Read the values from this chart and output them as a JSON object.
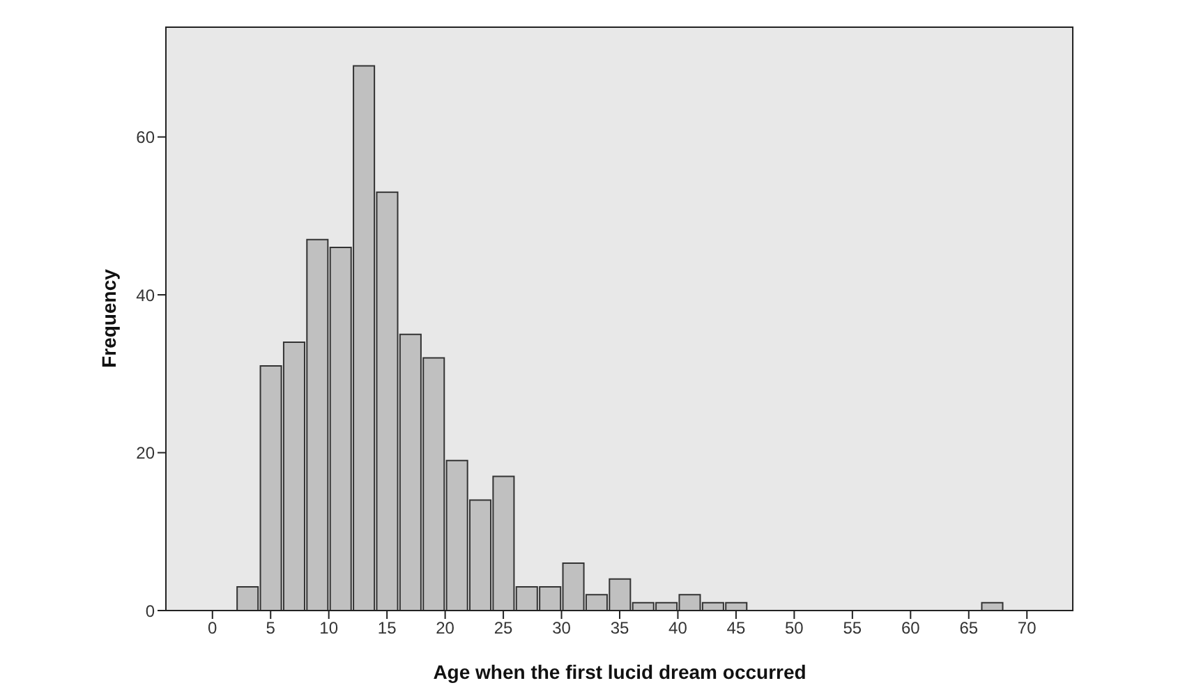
{
  "chart_data": {
    "type": "histogram",
    "xlabel": "Age when the first lucid dream occurred",
    "ylabel": "Frequency",
    "bins": [
      2,
      4,
      6,
      8,
      10,
      12,
      14,
      16,
      18,
      20,
      22,
      24,
      26,
      28,
      30,
      32,
      34,
      36,
      38,
      40,
      42,
      44,
      46,
      48,
      50,
      52,
      54,
      56,
      58,
      60,
      62,
      64,
      66,
      68
    ],
    "values": [
      3,
      31,
      34,
      47,
      46,
      69,
      53,
      35,
      32,
      19,
      14,
      17,
      3,
      3,
      6,
      2,
      4,
      1,
      1,
      2,
      1,
      1,
      0,
      0,
      0,
      0,
      0,
      0,
      0,
      0,
      0,
      0,
      1
    ],
    "color": "#c0c0c0",
    "xlim": [
      -4,
      74
    ],
    "xticks": [
      0,
      5,
      10,
      15,
      20,
      25,
      30,
      35,
      40,
      45,
      50,
      55,
      60,
      65,
      70
    ],
    "ylim": [
      0,
      74
    ],
    "yticks": [
      0,
      20,
      40,
      60
    ]
  }
}
